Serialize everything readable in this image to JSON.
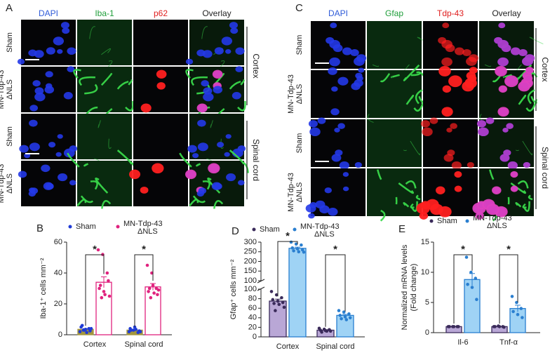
{
  "panel_a": {
    "letter": "A",
    "columns": [
      {
        "label": "DAPI",
        "color": "#2f5bd8"
      },
      {
        "label": "Iba-1",
        "color": "#1f9e3a"
      },
      {
        "label": "p62",
        "color": "#e02020"
      },
      {
        "label": "Overlay",
        "color": "#222222"
      }
    ],
    "rows": [
      {
        "lines": [
          "Sham"
        ]
      },
      {
        "lines": [
          "MN-Tdp-43",
          "ΔNLS"
        ]
      },
      {
        "lines": [
          "Sham"
        ]
      },
      {
        "lines": [
          "MN-Tdp-43",
          "ΔNLS"
        ]
      }
    ],
    "regions": [
      "Cortex",
      "Spinal cord"
    ]
  },
  "panel_c": {
    "letter": "C",
    "columns": [
      {
        "label": "DAPI",
        "color": "#2f5bd8"
      },
      {
        "label": "Gfap",
        "color": "#1f9e3a"
      },
      {
        "label": "Tdp-43",
        "color": "#e02020"
      },
      {
        "label": "Overlay",
        "color": "#222222"
      }
    ],
    "rows": [
      {
        "lines": [
          "Sham"
        ]
      },
      {
        "lines": [
          "MN-Tdp-43",
          "ΔNLS"
        ]
      },
      {
        "lines": [
          "Sham"
        ]
      },
      {
        "lines": [
          "MN-Tdp-43",
          "ΔNLS"
        ]
      }
    ],
    "regions": [
      "Cortex",
      "Spinal cord"
    ]
  },
  "chart_data": [
    {
      "type": "bar",
      "panel": "B",
      "y_label": "Iba-1⁺ cells mm⁻²",
      "categories": [
        "Cortex",
        "Spinal cord"
      ],
      "ylim": [
        0,
        60
      ],
      "yticks": [
        0,
        20,
        40,
        60
      ],
      "significance": [
        "*",
        "*"
      ],
      "series": [
        {
          "name": "Sham",
          "color": "#1f3bd6",
          "bar_color": "#a3963c",
          "bar_stroke": "#a3963c",
          "values": [
            3.5,
            3
          ],
          "errors": [
            0.5,
            0.4
          ],
          "points": [
            [
              2,
              3,
              4,
              5,
              3.5,
              2.5,
              6,
              1.5,
              4,
              3
            ],
            [
              2,
              3,
              1.5,
              4,
              5,
              2.5,
              3,
              3.5,
              2
            ]
          ]
        },
        {
          "name": "MN-Tdp-43 ΔNLS",
          "color": "#e0227e",
          "bar_color": "#ffffff",
          "bar_stroke": "#e0227e",
          "values": [
            34,
            31
          ],
          "errors": [
            3.5,
            2.2
          ],
          "points": [
            [
              55,
              52,
              40,
              30,
              28,
              35,
              32,
              26,
              25,
              24
            ],
            [
              45,
              40,
              30,
              28,
              32,
              26,
              30,
              27,
              29,
              24
            ]
          ]
        }
      ]
    },
    {
      "type": "bar",
      "panel": "D",
      "y_label": "Gfap⁺ cells mm⁻²",
      "categories": [
        "Cortex",
        "Spinal cord"
      ],
      "axis_break": {
        "lower": {
          "ylim": [
            0,
            100
          ],
          "yticks": [
            0,
            20,
            40,
            60,
            80,
            100
          ]
        },
        "upper": {
          "ylim": [
            100,
            300
          ],
          "yticks": [
            100,
            150,
            200,
            250,
            300
          ]
        }
      },
      "significance": [
        "*",
        "*"
      ],
      "series": [
        {
          "name": "Sham",
          "color": "#3a2a5a",
          "bar_color": "#b9a7d6",
          "bar_stroke": "#3a2a5a",
          "values": [
            75,
            14
          ],
          "errors": [
            4,
            1
          ],
          "points": [
            [
              95,
              88,
              82,
              78,
              75,
              72,
              70,
              68,
              62,
              55
            ],
            [
              18,
              16,
              15,
              14,
              13,
              12,
              10,
              12
            ]
          ]
        },
        {
          "name": "MN-Tdp-43 ΔNLS",
          "color": "#2a7fd0",
          "bar_color": "#9fd3f5",
          "bar_stroke": "#2a7fd0",
          "values": [
            268,
            45
          ],
          "errors": [
            6,
            2.3
          ],
          "points": [
            [
              300,
              290,
              285,
              270,
              265,
              260,
              255,
              250,
              248
            ],
            [
              55,
              52,
              48,
              45,
              42,
              40,
              38,
              36
            ]
          ]
        }
      ]
    },
    {
      "type": "bar",
      "panel": "E",
      "y_label": [
        "Normalized mRNA levels",
        "(Fold change)"
      ],
      "categories": [
        "Il-6",
        "Tnf-α"
      ],
      "ylim": [
        0,
        15
      ],
      "yticks": [
        0,
        5,
        10,
        15
      ],
      "significance": [
        "*",
        "*"
      ],
      "series": [
        {
          "name": "Sham",
          "color": "#3a2a5a",
          "bar_color": "#b9a7d6",
          "bar_stroke": "#3a2a5a",
          "values": [
            1,
            1
          ],
          "errors": [
            0.03,
            0.03
          ],
          "points": [
            [
              1,
              1,
              1,
              1,
              1,
              1
            ],
            [
              1,
              1.1,
              1,
              1,
              1,
              0.9
            ]
          ]
        },
        {
          "name": "MN-Tdp-43 ΔNLS",
          "color": "#2a7fd0",
          "bar_color": "#9fd3f5",
          "bar_stroke": "#2a7fd0",
          "values": [
            8.8,
            4
          ],
          "errors": [
            1,
            0.55
          ],
          "points": [
            [
              12.5,
              10,
              9,
              8,
              7.5,
              5.5
            ],
            [
              6,
              5,
              4,
              3.5,
              3,
              2.5
            ]
          ]
        }
      ]
    }
  ]
}
